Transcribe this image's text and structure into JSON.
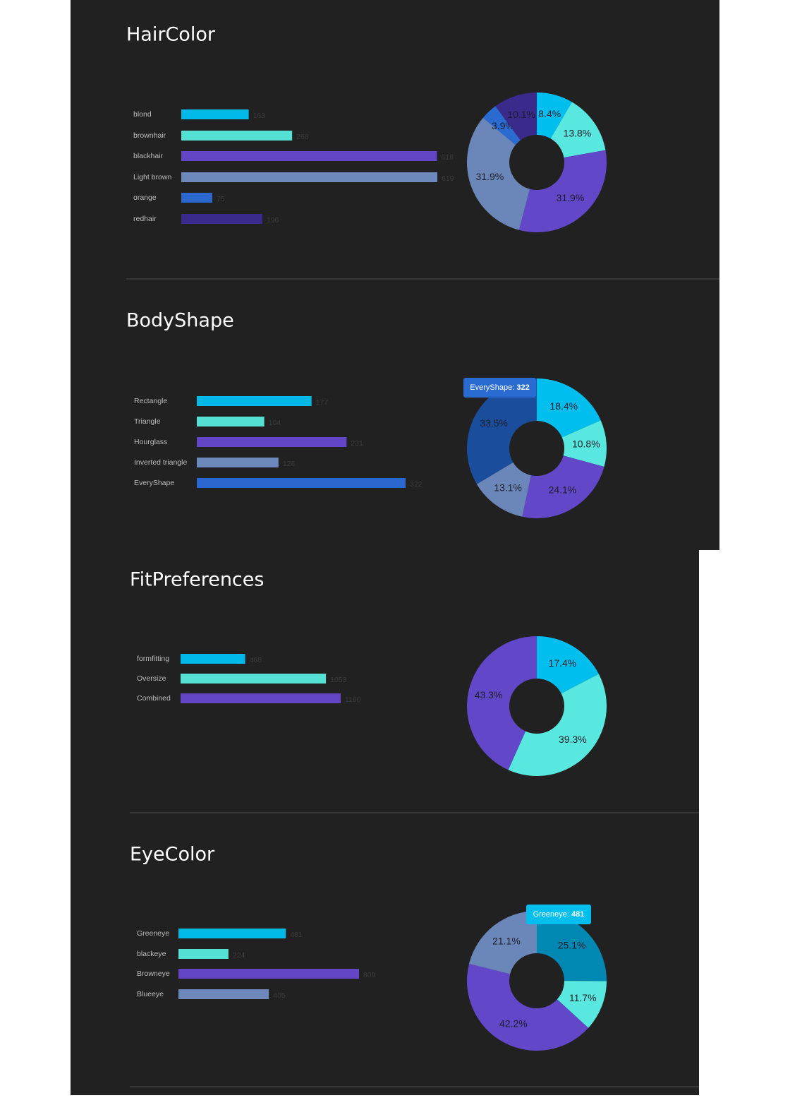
{
  "chart_data": [
    {
      "title": "HairColor",
      "bar": {
        "type": "bar",
        "categories": [
          "blond",
          "brownhair",
          "blackhair",
          "Light brown",
          "orange",
          "redhair"
        ],
        "values": [
          163,
          268,
          618,
          619,
          75,
          196
        ],
        "colors": [
          "#00b9e8",
          "#55e0d4",
          "#6246c6",
          "#6d88ba",
          "#2a68cf",
          "#3a2a8c"
        ]
      },
      "pie": {
        "type": "pie",
        "values": [
          8.4,
          13.8,
          31.9,
          31.9,
          3.9,
          10.1
        ],
        "value_labels": [
          "8.4%",
          "13.8%",
          "31.9%",
          "31.9%",
          "3.9%",
          "10.1%"
        ],
        "colors": [
          "#00bfef",
          "#58e8df",
          "#6247c8",
          "#6b87b9",
          "#2a6bd1",
          "#3a2a8c"
        ]
      }
    },
    {
      "title": "BodyShape",
      "bar": {
        "type": "bar",
        "categories": [
          "Rectangle",
          "Triangle",
          "Hourglass",
          "Inverted triangle",
          "EveryShape"
        ],
        "values": [
          177,
          104,
          231,
          126,
          322
        ],
        "colors": [
          "#00b9e8",
          "#55e0d4",
          "#6246c6",
          "#6d88ba",
          "#2a68cf"
        ]
      },
      "pie": {
        "type": "pie",
        "values": [
          18.4,
          10.8,
          24.1,
          13.1,
          33.5
        ],
        "value_labels": [
          "18.4%",
          "10.8%",
          "24.1%",
          "13.1%",
          "33.5%"
        ],
        "colors": [
          "#00bfef",
          "#58e8df",
          "#6247c8",
          "#6b87b9",
          "#1a4e9c"
        ]
      },
      "tooltip": {
        "label": "EveryShape:",
        "value": 322,
        "color": "#2a6bd1"
      }
    },
    {
      "title": "FitPreferences",
      "bar": {
        "type": "bar",
        "categories": [
          "formfitting",
          "Oversize",
          "Combined"
        ],
        "values": [
          468,
          1053,
          1160
        ],
        "colors": [
          "#00b9e8",
          "#55e0d4",
          "#6246c6"
        ]
      },
      "pie": {
        "type": "pie",
        "values": [
          17.4,
          39.3,
          43.3
        ],
        "value_labels": [
          "17.4%",
          "39.3%",
          "43.3%"
        ],
        "colors": [
          "#00bfef",
          "#58e8df",
          "#6247c8"
        ]
      }
    },
    {
      "title": "EyeColor",
      "bar": {
        "type": "bar",
        "categories": [
          "Greeneye",
          "blackeye",
          "Browneye",
          "Blueeye"
        ],
        "values": [
          481,
          224,
          809,
          405
        ],
        "colors": [
          "#00b9e8",
          "#55e0d4",
          "#6246c6",
          "#6d88ba"
        ]
      },
      "pie": {
        "type": "pie",
        "values": [
          25.1,
          11.7,
          42.2,
          21.1
        ],
        "value_labels": [
          "25.1%",
          "11.7%",
          "42.2%",
          "21.1%"
        ],
        "colors": [
          "#0088b2",
          "#58e8df",
          "#6247c8",
          "#6b87b9"
        ]
      },
      "tooltip": {
        "label": "Greeneye:",
        "value": 481,
        "color": "#00bfef"
      }
    }
  ]
}
